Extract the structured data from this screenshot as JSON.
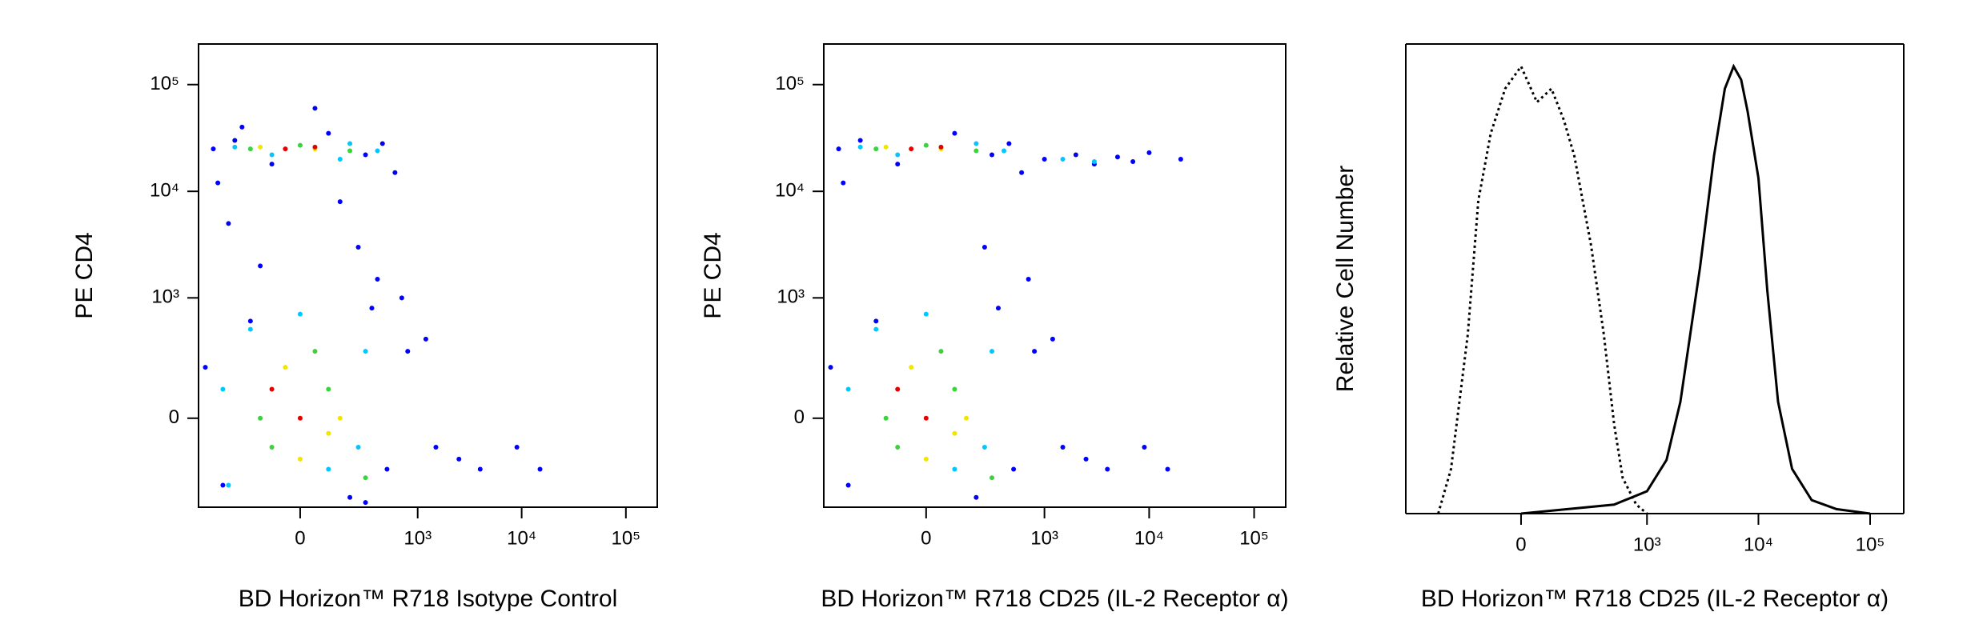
{
  "chart_data": [
    {
      "type": "scatter",
      "x_label": "BD Horizon™ R718 Isotype Control",
      "y_label": "PE CD4",
      "xlim": [
        -700,
        200000
      ],
      "ylim": [
        -500,
        240000
      ],
      "xticks": [
        0,
        {
          "value": 1000,
          "label": "10³"
        },
        {
          "value": 10000,
          "label": "10⁴"
        },
        {
          "value": 100000,
          "label": "10⁵"
        }
      ],
      "yticks": [
        0,
        {
          "value": 1000,
          "label": "10³"
        },
        {
          "value": 10000,
          "label": "10⁴"
        },
        {
          "value": 100000,
          "label": "10⁵"
        }
      ],
      "series": [
        {
          "color": "#0000ff",
          "x": [
            -500,
            -300,
            -100,
            100,
            300,
            450,
            -400,
            200,
            -200,
            350,
            -600,
            500,
            800,
            1500,
            2500,
            4000,
            9000,
            15000,
            600,
            -450,
            250,
            -350,
            150,
            400,
            -150,
            700,
            300,
            1200,
            -250,
            50
          ],
          "y": [
            25000,
            30000,
            18000,
            35000,
            22000,
            28000,
            -300,
            -400,
            600,
            800,
            200,
            -200,
            300,
            -100,
            -150,
            -200,
            -100,
            -200,
            15000,
            12000,
            3000,
            5000,
            8000,
            1500,
            2000,
            1000,
            -450,
            400,
            40000,
            60000
          ]
        },
        {
          "color": "#00c8ff",
          "x": [
            -300,
            -100,
            200,
            400,
            -400,
            100,
            300,
            -200,
            0,
            250,
            -350,
            150
          ],
          "y": [
            26000,
            22000,
            28000,
            24000,
            100,
            -200,
            300,
            500,
            700,
            -100,
            -300,
            20000
          ]
        },
        {
          "color": "#3cd23c",
          "x": [
            -200,
            0,
            200,
            -100,
            100,
            50,
            -150,
            300
          ],
          "y": [
            25000,
            27000,
            24000,
            -100,
            100,
            300,
            0,
            -250
          ]
        },
        {
          "color": "#f0e600",
          "x": [
            -150,
            50,
            150,
            -50,
            0,
            100
          ],
          "y": [
            26000,
            25000,
            0,
            200,
            -150,
            -50
          ]
        },
        {
          "color": "#e60000",
          "x": [
            -50,
            50,
            0,
            -100
          ],
          "y": [
            25000,
            26000,
            0,
            100
          ]
        }
      ]
    },
    {
      "type": "scatter",
      "x_label": "BD Horizon™ R718 CD25 (IL-2 Receptor α)",
      "y_label": "PE CD4",
      "xlim": [
        -700,
        200000
      ],
      "ylim": [
        -500,
        240000
      ],
      "xticks": [
        0,
        {
          "value": 1000,
          "label": "10³"
        },
        {
          "value": 10000,
          "label": "10⁴"
        },
        {
          "value": 100000,
          "label": "10⁵"
        }
      ],
      "yticks": [
        0,
        {
          "value": 1000,
          "label": "10³"
        },
        {
          "value": 10000,
          "label": "10⁴"
        },
        {
          "value": 100000,
          "label": "10⁵"
        }
      ],
      "series": [
        {
          "color": "#0000ff",
          "x": [
            -500,
            -300,
            -100,
            100,
            300,
            450,
            -400,
            200,
            -200,
            350,
            -600,
            500,
            800,
            1500,
            2500,
            4000,
            9000,
            15000,
            600,
            -450,
            250,
            1000,
            2000,
            3000,
            5000,
            7000,
            10000,
            20000,
            1200,
            700
          ],
          "y": [
            25000,
            30000,
            18000,
            35000,
            22000,
            28000,
            -300,
            -400,
            600,
            800,
            200,
            -200,
            300,
            -100,
            -150,
            -200,
            -100,
            -200,
            15000,
            12000,
            3000,
            20000,
            22000,
            18000,
            21000,
            19000,
            23000,
            20000,
            400,
            1500
          ]
        },
        {
          "color": "#00c8ff",
          "x": [
            -300,
            -100,
            200,
            400,
            -400,
            100,
            300,
            -200,
            0,
            250,
            1500,
            3000
          ],
          "y": [
            26000,
            22000,
            28000,
            24000,
            100,
            -200,
            300,
            500,
            700,
            -100,
            20000,
            19000
          ]
        },
        {
          "color": "#3cd23c",
          "x": [
            -200,
            0,
            200,
            -100,
            100,
            50,
            -150,
            300
          ],
          "y": [
            25000,
            27000,
            24000,
            -100,
            100,
            300,
            0,
            -250
          ]
        },
        {
          "color": "#f0e600",
          "x": [
            -150,
            50,
            150,
            -50,
            0,
            100
          ],
          "y": [
            26000,
            25000,
            0,
            200,
            -150,
            -50
          ]
        },
        {
          "color": "#e60000",
          "x": [
            -50,
            50,
            0,
            -100
          ],
          "y": [
            25000,
            26000,
            0,
            100
          ]
        }
      ]
    },
    {
      "type": "line",
      "x_label": "BD Horizon™ R718 CD25 (IL-2 Receptor α)",
      "y_label": "Relative Cell Number",
      "xlim": [
        -800,
        200000
      ],
      "ylim": [
        0,
        105
      ],
      "xticks": [
        0,
        {
          "value": 1000,
          "label": "10³"
        },
        {
          "value": 10000,
          "label": "10⁴"
        },
        {
          "value": 100000,
          "label": "10⁵"
        }
      ],
      "series": [
        {
          "color": "#000000",
          "dash": "dotted",
          "x": [
            -400,
            -300,
            -200,
            -150,
            -100,
            -50,
            0,
            50,
            100,
            150,
            200,
            300,
            400,
            500,
            600,
            800,
            1000
          ],
          "values": [
            0,
            10,
            40,
            70,
            85,
            95,
            100,
            92,
            95,
            88,
            80,
            60,
            40,
            20,
            8,
            2,
            0
          ]
        },
        {
          "color": "#000000",
          "dash": "solid",
          "x": [
            0,
            500,
            1000,
            1500,
            2000,
            3000,
            4000,
            5000,
            6000,
            7000,
            8000,
            10000,
            12000,
            15000,
            20000,
            30000,
            50000,
            100000
          ],
          "values": [
            0,
            2,
            5,
            12,
            25,
            55,
            80,
            95,
            100,
            97,
            90,
            75,
            50,
            25,
            10,
            3,
            1,
            0
          ]
        }
      ]
    }
  ]
}
